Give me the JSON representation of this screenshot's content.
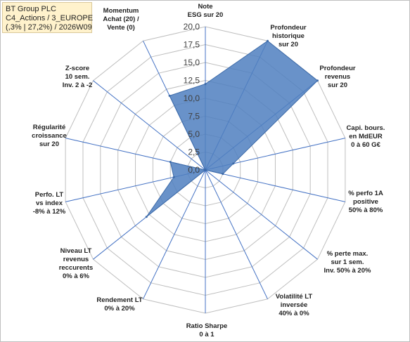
{
  "header": {
    "line1": "BT Group PLC",
    "line2": "C4_Actions / 3_EUROPE",
    "line3": "(,3% | 27,2%) / 2026W09"
  },
  "chart_data": {
    "type": "radar",
    "rmin": 0,
    "rmax": 20,
    "tick_labels": [
      "0,0",
      "2,5",
      "5,0",
      "7,5",
      "10,0",
      "12,5",
      "15,0",
      "17,5",
      "20,0"
    ],
    "grid": true,
    "fill_color": "#4f7fbf",
    "grid_color": "#bfbfbf",
    "spoke_color": "#4472c4",
    "axes": [
      {
        "label": [
          "Note",
          "ESG sur 20"
        ],
        "value": 12.0
      },
      {
        "label": [
          "Profondeur",
          "historique",
          "sur 20"
        ],
        "value": 20.0
      },
      {
        "label": [
          "Profondeur",
          "revenus",
          "sur 20"
        ],
        "value": 20.0
      },
      {
        "label": [
          "Capi. bours.",
          "en MdEUR",
          "0 à 60 G€"
        ],
        "value": 4.0
      },
      {
        "label": [
          "% perfo 1A",
          "positive",
          "50% à 80%"
        ],
        "value": 2.5
      },
      {
        "label": [
          "% perte max.",
          "sur 1 sem.",
          "Inv. 50% à 20%"
        ],
        "value": 0.0
      },
      {
        "label": [
          "Volatilité LT",
          "inversée",
          "40% à 0%"
        ],
        "value": 0.0
      },
      {
        "label": [
          "Ratio Sharpe",
          "0 à 1"
        ],
        "value": 0.0
      },
      {
        "label": [
          "Rendement LT",
          "0% à 20%"
        ],
        "value": 0.0
      },
      {
        "label": [
          "Niveau LT",
          "revenus",
          "reccurents",
          "0% à 6%"
        ],
        "value": 10.5
      },
      {
        "label": [
          "Perfo. LT",
          "vs index",
          "-8% à 12%"
        ],
        "value": 4.5
      },
      {
        "label": [
          "Régularité",
          "croissance",
          "sur 20"
        ],
        "value": 5.0
      },
      {
        "label": [
          "Z-score",
          "10 sem.",
          "Inv. 2 à -2"
        ],
        "value": 0.0
      },
      {
        "label": [
          "Momentum",
          "Achat (20) /",
          "Vente (0)"
        ],
        "value": 11.5
      }
    ]
  }
}
